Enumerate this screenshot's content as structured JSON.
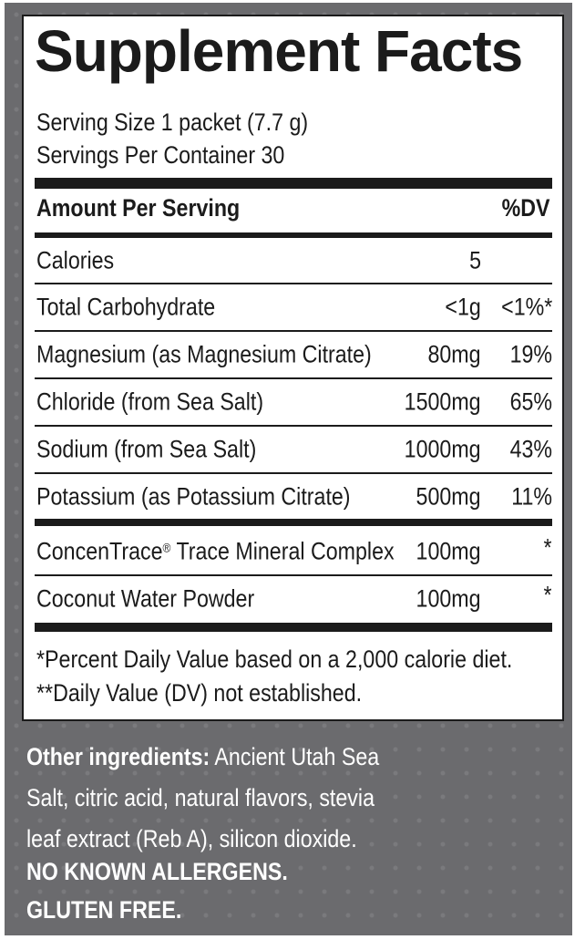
{
  "label": {
    "title": "Supplement Facts",
    "serving_size": "Serving Size 1 packet (7.7 g)",
    "servings_per_container": "Servings Per Container 30",
    "header_amount": "Amount Per Serving",
    "header_dv": "%DV",
    "rows": [
      {
        "name": "Calories",
        "amount": "5",
        "dv": ""
      },
      {
        "name": "Total Carbohydrate",
        "amount": "<1g",
        "dv": "<1%*"
      },
      {
        "name": "Magnesium (as Magnesium Citrate)",
        "amount": "80mg",
        "dv": "19%"
      },
      {
        "name": "Chloride (from Sea Salt)",
        "amount": "1500mg",
        "dv": "65%"
      },
      {
        "name": "Sodium (from Sea Salt)",
        "amount": "1000mg",
        "dv": "43%"
      },
      {
        "name": "Potassium (as Potassium Citrate)",
        "amount": "500mg",
        "dv": "11%"
      }
    ],
    "other_rows": [
      {
        "name": "ConcenTrace",
        "name_mark": "®",
        "name_rest": " Trace Mineral Complex",
        "amount": "100mg",
        "dv": "*"
      },
      {
        "name": "Coconut Water Powder",
        "amount": "100mg",
        "dv": "*"
      }
    ],
    "footnote_1": "*Percent Daily Value based on a 2,000 calorie diet.",
    "footnote_2": "**Daily Value (DV) not established."
  },
  "ingredients": {
    "label": "Other ingredients:",
    "line1": " Ancient Utah Sea",
    "line2": "Salt, citric acid, natural flavors, stevia",
    "line3": "leaf extract (Reb A), silicon dioxide."
  },
  "notices": {
    "allergens": "NO KNOWN ALLERGENS.",
    "gluten": "GLUTEN FREE."
  },
  "colors": {
    "background_gray": "#6b6b6e",
    "panel": "#ffffff",
    "ink": "#1b1b1b"
  }
}
